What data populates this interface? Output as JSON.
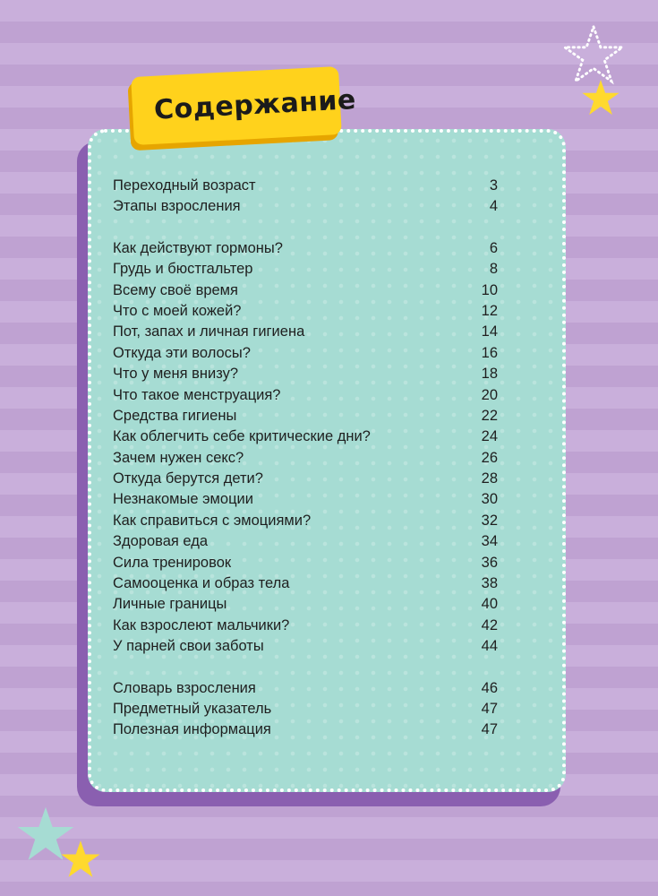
{
  "title": "Содержание",
  "toc_groups": [
    [
      {
        "title": "Переходный возраст",
        "page": "3"
      },
      {
        "title": "Этапы взросления",
        "page": "4"
      }
    ],
    [
      {
        "title": "Как действуют гормоны?",
        "page": "6"
      },
      {
        "title": "Грудь и бюстгальтер",
        "page": "8"
      },
      {
        "title": "Всему своё время",
        "page": "10"
      },
      {
        "title": "Что с моей кожей?",
        "page": "12"
      },
      {
        "title": "Пот, запах и личная гигиена",
        "page": "14"
      },
      {
        "title": "Откуда эти волосы?",
        "page": "16"
      },
      {
        "title": "Что у меня внизу?",
        "page": "18"
      },
      {
        "title": "Что такое менструация?",
        "page": "20"
      },
      {
        "title": "Средства гигиены",
        "page": "22"
      },
      {
        "title": "Как облегчить себе критические дни?",
        "page": "24"
      },
      {
        "title": "Зачем нужен секс?",
        "page": "26"
      },
      {
        "title": "Откуда берутся дети?",
        "page": "28"
      },
      {
        "title": "Незнакомые эмоции",
        "page": "30"
      },
      {
        "title": "Как справиться с эмоциями?",
        "page": "32"
      },
      {
        "title": "Здоровая еда",
        "page": "34"
      },
      {
        "title": "Сила тренировок",
        "page": "36"
      },
      {
        "title": "Самооценка и образ тела",
        "page": "38"
      },
      {
        "title": "Личные границы",
        "page": "40"
      },
      {
        "title": "Как взрослеют мальчики?",
        "page": "42"
      },
      {
        "title": "У парней свои заботы",
        "page": "44"
      }
    ],
    [
      {
        "title": "Словарь взросления",
        "page": "46"
      },
      {
        "title": "Предметный указатель",
        "page": "47"
      },
      {
        "title": "Полезная информация",
        "page": "47"
      }
    ]
  ],
  "colors": {
    "background": "#c6abd8",
    "card": "#a6dcd3",
    "card_shadow": "#8a5fb0",
    "badge": "#ffd21c",
    "star_yellow": "#ffd92e",
    "star_teal": "#a6dcd3"
  },
  "icons": {
    "top_outline_star": "star-outline-icon",
    "top_filled_star": "star-icon",
    "bottom_teal_star": "star-icon",
    "bottom_yellow_star": "star-icon"
  }
}
